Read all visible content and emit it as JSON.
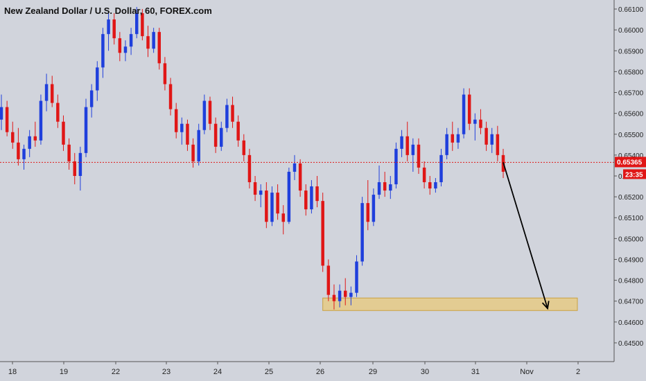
{
  "chart_data": {
    "type": "candlestick",
    "title": "New Zealand Dollar / U.S. Dollar, 60, FOREX.com",
    "y_axis_ticks": [
      "0.66100",
      "0.66000",
      "0.65900",
      "0.65800",
      "0.65700",
      "0.65600",
      "0.65500",
      "0.65400",
      "0.65300",
      "0.65200",
      "0.65100",
      "0.65000",
      "0.64900",
      "0.64800",
      "0.64700",
      "0.64600",
      "0.64500"
    ],
    "ylim": [
      0.6445,
      0.6613
    ],
    "x_axis_ticks": [
      "18",
      "19",
      "22",
      "23",
      "24",
      "25",
      "26",
      "29",
      "30",
      "31",
      "Nov",
      "2"
    ],
    "current_price_label": "0.65365",
    "countdown_label": "23:35",
    "current_price": 0.65365,
    "support_zone": {
      "low": 0.64655,
      "high": 0.64715
    },
    "projection_target": 0.64665,
    "colors": {
      "background": "#d1d4dc",
      "up_candle": "#1f3fdc",
      "down_candle": "#e01616",
      "price_line": "#e01616",
      "zone_fill": "#e8c97a",
      "zone_border": "#c9a040",
      "arrow": "#000000"
    },
    "candles": [
      [
        0.6557,
        0.6569,
        0.6552,
        0.6563
      ],
      [
        0.6563,
        0.6566,
        0.6549,
        0.6551
      ],
      [
        0.6551,
        0.6556,
        0.6543,
        0.6546
      ],
      [
        0.6546,
        0.6553,
        0.6535,
        0.6538
      ],
      [
        0.6538,
        0.6545,
        0.6533,
        0.6543
      ],
      [
        0.6543,
        0.6552,
        0.6539,
        0.6549
      ],
      [
        0.6549,
        0.6556,
        0.6544,
        0.6547
      ],
      [
        0.6547,
        0.6569,
        0.6545,
        0.6566
      ],
      [
        0.6566,
        0.6579,
        0.6561,
        0.6574
      ],
      [
        0.6574,
        0.6578,
        0.6563,
        0.6565
      ],
      [
        0.6565,
        0.6569,
        0.6553,
        0.6556
      ],
      [
        0.6556,
        0.6559,
        0.6542,
        0.6545
      ],
      [
        0.6545,
        0.6548,
        0.6533,
        0.6537
      ],
      [
        0.6537,
        0.6541,
        0.6526,
        0.653
      ],
      [
        0.653,
        0.6544,
        0.6523,
        0.6541
      ],
      [
        0.6541,
        0.6567,
        0.6539,
        0.6563
      ],
      [
        0.6563,
        0.6574,
        0.6558,
        0.6571
      ],
      [
        0.6571,
        0.6585,
        0.6566,
        0.6582
      ],
      [
        0.6582,
        0.6601,
        0.6577,
        0.6598
      ],
      [
        0.6598,
        0.6609,
        0.659,
        0.6605
      ],
      [
        0.6605,
        0.6608,
        0.6593,
        0.6596
      ],
      [
        0.6596,
        0.6599,
        0.6585,
        0.6589
      ],
      [
        0.6589,
        0.6595,
        0.6585,
        0.6592
      ],
      [
        0.6592,
        0.6601,
        0.6588,
        0.6598
      ],
      [
        0.6598,
        0.6611,
        0.6596,
        0.6608
      ],
      [
        0.6608,
        0.661,
        0.6595,
        0.6597
      ],
      [
        0.6597,
        0.6602,
        0.6587,
        0.6591
      ],
      [
        0.6591,
        0.6601,
        0.6589,
        0.6599
      ],
      [
        0.6599,
        0.6601,
        0.6581,
        0.6584
      ],
      [
        0.6584,
        0.6587,
        0.6571,
        0.6574
      ],
      [
        0.6574,
        0.6577,
        0.6559,
        0.6562
      ],
      [
        0.6562,
        0.6565,
        0.6548,
        0.6551
      ],
      [
        0.6551,
        0.6558,
        0.6545,
        0.6555
      ],
      [
        0.6555,
        0.6557,
        0.6542,
        0.6545
      ],
      [
        0.6545,
        0.6548,
        0.6534,
        0.6537
      ],
      [
        0.6537,
        0.6555,
        0.6535,
        0.6552
      ],
      [
        0.6552,
        0.6569,
        0.655,
        0.6566
      ],
      [
        0.6566,
        0.6568,
        0.6552,
        0.6555
      ],
      [
        0.6555,
        0.6558,
        0.6541,
        0.6544
      ],
      [
        0.6544,
        0.6556,
        0.6542,
        0.6553
      ],
      [
        0.6553,
        0.6567,
        0.6551,
        0.6564
      ],
      [
        0.6564,
        0.6568,
        0.6553,
        0.6556
      ],
      [
        0.6556,
        0.6559,
        0.6544,
        0.6547
      ],
      [
        0.6547,
        0.655,
        0.6537,
        0.654
      ],
      [
        0.654,
        0.6543,
        0.6524,
        0.6527
      ],
      [
        0.6527,
        0.653,
        0.6518,
        0.6521
      ],
      [
        0.6521,
        0.6526,
        0.6515,
        0.6523
      ],
      [
        0.6523,
        0.6527,
        0.6505,
        0.6508
      ],
      [
        0.6508,
        0.6525,
        0.6506,
        0.6522
      ],
      [
        0.6522,
        0.6526,
        0.6509,
        0.6512
      ],
      [
        0.6512,
        0.6516,
        0.6502,
        0.6508
      ],
      [
        0.6508,
        0.6534,
        0.6507,
        0.6532
      ],
      [
        0.6532,
        0.654,
        0.6528,
        0.6536
      ],
      [
        0.6536,
        0.6538,
        0.652,
        0.6523
      ],
      [
        0.6523,
        0.6526,
        0.6511,
        0.6514
      ],
      [
        0.6514,
        0.6528,
        0.6512,
        0.6525
      ],
      [
        0.6525,
        0.653,
        0.6515,
        0.6518
      ],
      [
        0.6518,
        0.6522,
        0.6484,
        0.6487
      ],
      [
        0.6487,
        0.649,
        0.647,
        0.6473
      ],
      [
        0.6473,
        0.6478,
        0.6466,
        0.647
      ],
      [
        0.647,
        0.6478,
        0.6467,
        0.6475
      ],
      [
        0.6475,
        0.6481,
        0.6468,
        0.6472
      ],
      [
        0.6472,
        0.6477,
        0.6468,
        0.6474
      ],
      [
        0.6474,
        0.6492,
        0.6472,
        0.6489
      ],
      [
        0.6489,
        0.652,
        0.6487,
        0.6517
      ],
      [
        0.6517,
        0.6528,
        0.6504,
        0.6508
      ],
      [
        0.6508,
        0.6524,
        0.6506,
        0.6521
      ],
      [
        0.6521,
        0.6535,
        0.6519,
        0.6527
      ],
      [
        0.6527,
        0.6532,
        0.652,
        0.6523
      ],
      [
        0.6523,
        0.653,
        0.6519,
        0.6526
      ],
      [
        0.6526,
        0.6546,
        0.6524,
        0.6543
      ],
      [
        0.6543,
        0.6552,
        0.6539,
        0.6549
      ],
      [
        0.6549,
        0.6556,
        0.6537,
        0.654
      ],
      [
        0.654,
        0.6548,
        0.6532,
        0.6545
      ],
      [
        0.6545,
        0.6548,
        0.6531,
        0.6534
      ],
      [
        0.6534,
        0.6537,
        0.6524,
        0.6527
      ],
      [
        0.6527,
        0.653,
        0.6521,
        0.6524
      ],
      [
        0.6524,
        0.6529,
        0.6522,
        0.6527
      ],
      [
        0.6527,
        0.6543,
        0.6525,
        0.654
      ],
      [
        0.654,
        0.6553,
        0.6538,
        0.655
      ],
      [
        0.655,
        0.6556,
        0.6542,
        0.6546
      ],
      [
        0.6546,
        0.6553,
        0.6543,
        0.655
      ],
      [
        0.655,
        0.6572,
        0.6548,
        0.6569
      ],
      [
        0.6569,
        0.6572,
        0.6552,
        0.6555
      ],
      [
        0.6555,
        0.656,
        0.6547,
        0.6557
      ],
      [
        0.6557,
        0.6562,
        0.655,
        0.6553
      ],
      [
        0.6553,
        0.6556,
        0.6542,
        0.6545
      ],
      [
        0.6545,
        0.6553,
        0.6541,
        0.655
      ],
      [
        0.655,
        0.6554,
        0.6537,
        0.654
      ],
      [
        0.654,
        0.6543,
        0.6529,
        0.6532
      ]
    ]
  }
}
